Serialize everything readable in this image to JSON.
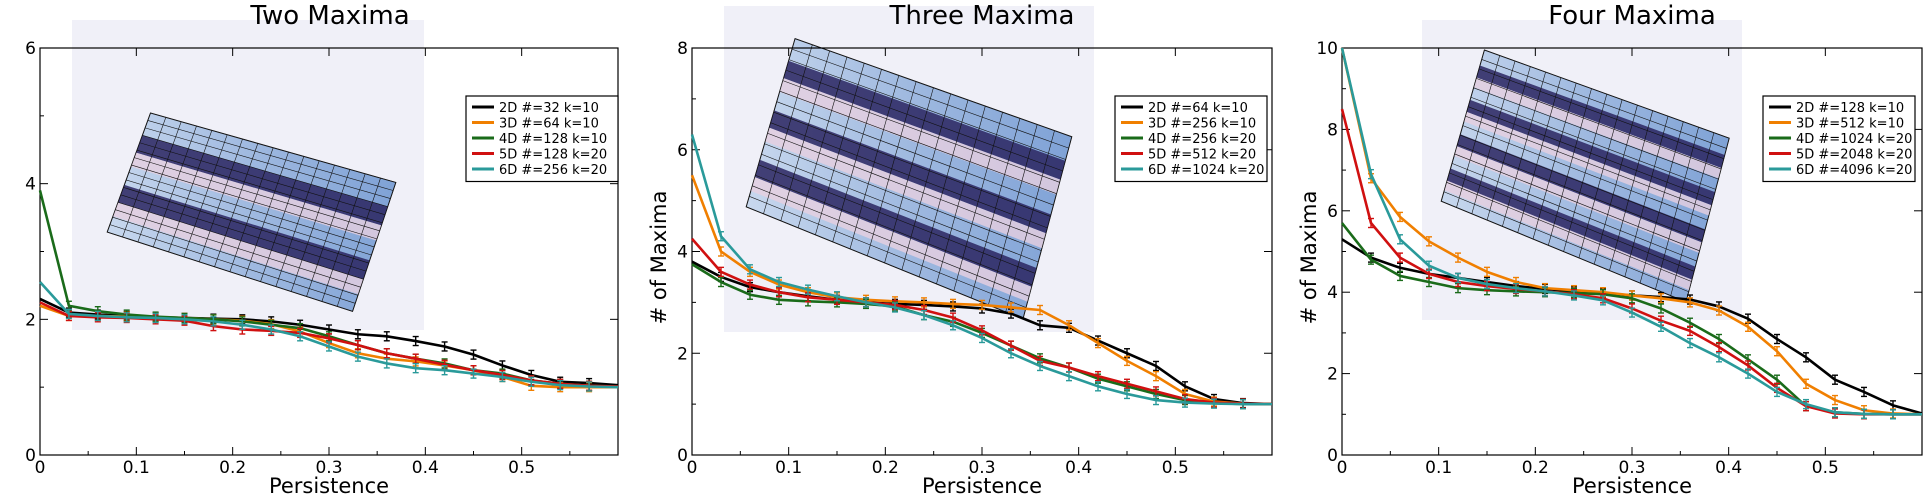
{
  "chart_data": [
    {
      "type": "line",
      "title": "Two Maxima",
      "xlabel": "Persistence",
      "ylabel": "",
      "xlim": [
        0,
        0.6
      ],
      "ylim": [
        0,
        6
      ],
      "xticks": [
        "0",
        "0.1",
        "0.2",
        "0.3",
        "0.4",
        "0.5"
      ],
      "yticks": [
        "0",
        "2",
        "4",
        "6"
      ],
      "legend_position": "right",
      "inset": "3D surface plot with two maxima ridges",
      "x": [
        0,
        0.03,
        0.06,
        0.09,
        0.12,
        0.15,
        0.18,
        0.21,
        0.24,
        0.27,
        0.3,
        0.33,
        0.36,
        0.39,
        0.42,
        0.45,
        0.48,
        0.51,
        0.54,
        0.57,
        0.6
      ],
      "series": [
        {
          "name": "2D #=32 k=10",
          "color": "#000000",
          "values": [
            2.3,
            2.1,
            2.07,
            2.05,
            2.03,
            2.02,
            2.01,
            2.0,
            1.97,
            1.92,
            1.85,
            1.78,
            1.75,
            1.68,
            1.6,
            1.48,
            1.32,
            1.18,
            1.08,
            1.06,
            1.03
          ]
        },
        {
          "name": "3D #=64 k=10",
          "color": "#f07f00",
          "values": [
            2.2,
            2.05,
            2.05,
            2.04,
            2.03,
            2.02,
            2.0,
            1.98,
            1.93,
            1.82,
            1.65,
            1.5,
            1.42,
            1.38,
            1.32,
            1.25,
            1.15,
            1.02,
            1.0,
            1.0,
            1.0
          ]
        },
        {
          "name": "4D #=128 k=10",
          "color": "#1a6b1a",
          "values": [
            3.9,
            2.2,
            2.12,
            2.07,
            2.04,
            2.02,
            2.0,
            1.97,
            1.92,
            1.87,
            1.75,
            1.62,
            1.5,
            1.42,
            1.35,
            1.25,
            1.2,
            1.1,
            1.05,
            1.02,
            1.01
          ]
        },
        {
          "name": "5D #=128 k=20",
          "color": "#d01010",
          "values": [
            2.25,
            2.05,
            2.03,
            2.02,
            2.0,
            1.98,
            1.9,
            1.85,
            1.83,
            1.8,
            1.72,
            1.62,
            1.5,
            1.42,
            1.33,
            1.25,
            1.18,
            1.1,
            1.05,
            1.02,
            1.01
          ]
        },
        {
          "name": "6D #=256 k=20",
          "color": "#2a9a9a",
          "values": [
            2.55,
            2.08,
            2.05,
            2.03,
            2.02,
            2.0,
            1.97,
            1.92,
            1.85,
            1.75,
            1.6,
            1.45,
            1.35,
            1.28,
            1.25,
            1.2,
            1.15,
            1.08,
            1.03,
            1.01,
            1.0
          ]
        }
      ]
    },
    {
      "type": "line",
      "title": "Three Maxima",
      "xlabel": "Persistence",
      "ylabel": "# of Maxima",
      "xlim": [
        0,
        0.6
      ],
      "ylim": [
        0,
        8
      ],
      "xticks": [
        "0",
        "0.1",
        "0.2",
        "0.3",
        "0.4",
        "0.5"
      ],
      "yticks": [
        "0",
        "2",
        "4",
        "6",
        "8"
      ],
      "legend_position": "right",
      "inset": "3D surface plot with three maxima ridges",
      "x": [
        0,
        0.03,
        0.06,
        0.09,
        0.12,
        0.15,
        0.18,
        0.21,
        0.24,
        0.27,
        0.3,
        0.33,
        0.36,
        0.39,
        0.42,
        0.45,
        0.48,
        0.51,
        0.54,
        0.57,
        0.6
      ],
      "series": [
        {
          "name": "2D #=64 k=10",
          "color": "#000000",
          "values": [
            3.8,
            3.5,
            3.3,
            3.2,
            3.12,
            3.05,
            3.0,
            2.97,
            2.95,
            2.92,
            2.88,
            2.78,
            2.55,
            2.5,
            2.25,
            2.0,
            1.75,
            1.35,
            1.1,
            1.02,
            1.0
          ]
        },
        {
          "name": "3D #=256 k=10",
          "color": "#f07f00",
          "values": [
            5.5,
            4.0,
            3.6,
            3.35,
            3.2,
            3.1,
            3.05,
            3.02,
            3.0,
            2.97,
            2.95,
            2.9,
            2.85,
            2.55,
            2.2,
            1.85,
            1.55,
            1.2,
            1.05,
            1.01,
            1.0
          ]
        },
        {
          "name": "4D #=256 k=20",
          "color": "#1a6b1a",
          "values": [
            3.75,
            3.4,
            3.15,
            3.05,
            3.02,
            3.0,
            2.97,
            2.92,
            2.75,
            2.62,
            2.4,
            2.15,
            1.9,
            1.72,
            1.5,
            1.35,
            1.2,
            1.08,
            1.02,
            1.0,
            1.0
          ]
        },
        {
          "name": "5D #=512 k=20",
          "color": "#d01010",
          "values": [
            4.25,
            3.6,
            3.35,
            3.2,
            3.1,
            3.05,
            3.0,
            2.95,
            2.85,
            2.7,
            2.45,
            2.15,
            1.85,
            1.72,
            1.55,
            1.4,
            1.25,
            1.1,
            1.03,
            1.01,
            1.0
          ]
        },
        {
          "name": "6D #=1024 k=20",
          "color": "#2a9a9a",
          "values": [
            6.3,
            4.3,
            3.65,
            3.4,
            3.25,
            3.12,
            3.0,
            2.9,
            2.75,
            2.55,
            2.3,
            2.0,
            1.75,
            1.55,
            1.35,
            1.2,
            1.08,
            1.03,
            1.01,
            1.0,
            1.0
          ]
        }
      ]
    },
    {
      "type": "line",
      "title": "Four Maxima",
      "xlabel": "Persistence",
      "ylabel": "# of Maxima",
      "xlim": [
        0,
        0.6
      ],
      "ylim": [
        0,
        10
      ],
      "xticks": [
        "0",
        "0.1",
        "0.2",
        "0.3",
        "0.4",
        "0.5"
      ],
      "yticks": [
        "0",
        "2",
        "4",
        "6",
        "8",
        "10"
      ],
      "legend_position": "right",
      "inset": "3D surface plot with four maxima ridges",
      "x": [
        0,
        0.03,
        0.06,
        0.09,
        0.12,
        0.15,
        0.18,
        0.21,
        0.24,
        0.27,
        0.3,
        0.33,
        0.36,
        0.39,
        0.42,
        0.45,
        0.48,
        0.51,
        0.54,
        0.57,
        0.6
      ],
      "series": [
        {
          "name": "2D #=128 k=10",
          "color": "#000000",
          "values": [
            5.3,
            4.85,
            4.6,
            4.45,
            4.35,
            4.25,
            4.15,
            4.08,
            4.02,
            3.97,
            3.92,
            3.88,
            3.82,
            3.65,
            3.35,
            2.85,
            2.4,
            1.85,
            1.55,
            1.22,
            1.02
          ]
        },
        {
          "name": "3D #=512 k=10",
          "color": "#f07f00",
          "values": [
            10.0,
            6.8,
            5.85,
            5.25,
            4.85,
            4.5,
            4.25,
            4.1,
            4.05,
            4.0,
            3.92,
            3.85,
            3.75,
            3.55,
            3.15,
            2.55,
            1.75,
            1.35,
            1.1,
            1.02,
            1.0
          ]
        },
        {
          "name": "4D #=1024 k=20",
          "color": "#1a6b1a",
          "values": [
            5.7,
            4.8,
            4.4,
            4.25,
            4.1,
            4.05,
            4.02,
            4.0,
            3.98,
            3.95,
            3.85,
            3.6,
            3.25,
            2.85,
            2.35,
            1.85,
            1.2,
            1.05,
            1.01,
            1.0,
            1.0
          ]
        },
        {
          "name": "5D #=2048 k=20",
          "color": "#d01010",
          "values": [
            8.5,
            5.7,
            4.85,
            4.45,
            4.25,
            4.15,
            4.08,
            4.02,
            3.95,
            3.85,
            3.6,
            3.3,
            3.05,
            2.65,
            2.2,
            1.65,
            1.2,
            1.02,
            1.0,
            1.0,
            1.0
          ]
        },
        {
          "name": "6D #=4096 k=20",
          "color": "#2a9a9a",
          "values": [
            10.0,
            6.9,
            5.3,
            4.65,
            4.35,
            4.2,
            4.1,
            4.02,
            3.92,
            3.8,
            3.5,
            3.15,
            2.75,
            2.4,
            2.0,
            1.55,
            1.25,
            1.05,
            1.01,
            1.0,
            1.0
          ]
        }
      ]
    }
  ]
}
